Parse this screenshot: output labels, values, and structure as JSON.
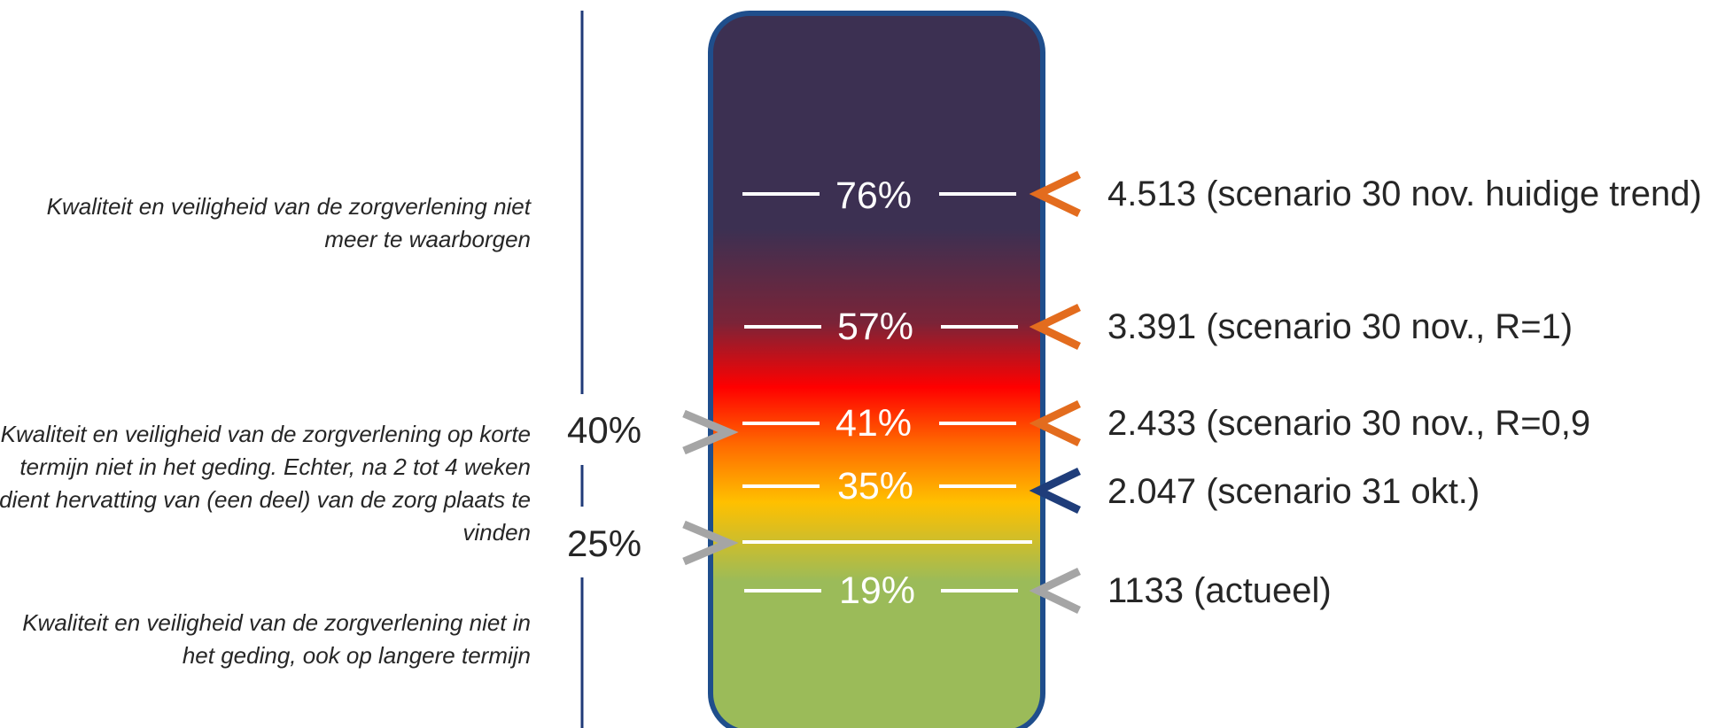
{
  "colors": {
    "axis_line": "#1f3a78",
    "gauge_border": "#1f4e8c",
    "arrow_orange": "#e36c1e",
    "arrow_blue": "#1f3d7a",
    "arrow_gray": "#a5a5a5",
    "tick_white": "#ffffff",
    "gradient": [
      "#3c3052",
      "#7a2438",
      "#ff0000",
      "#ff6a00",
      "#ffc000",
      "#9bbb59"
    ]
  },
  "descriptions": [
    "Kwaliteit en veiligheid van de zorgverlening niet meer te waarborgen",
    "Kwaliteit en veiligheid van de zorgverlening op korte termijn niet in het geding. Echter, na 2 tot 4 weken dient hervatting van (een deel) van de zorg plaats te vinden",
    "Kwaliteit en veiligheid van de zorgverlening niet in het geding, ook op langere termijn"
  ],
  "thresholds": [
    {
      "label": "40%",
      "value": 40
    },
    {
      "label": "25%",
      "value": 25
    }
  ],
  "levels": [
    {
      "label": "76%",
      "value": 76,
      "scenario": "4.513 (scenario 30 nov. huidige trend)",
      "arrow": "orange"
    },
    {
      "label": "57%",
      "value": 57,
      "scenario": "3.391 (scenario 30 nov., R=1)",
      "arrow": "orange"
    },
    {
      "label": "41%",
      "value": 41,
      "scenario": "2.433 (scenario 30 nov., R=0,9",
      "arrow": "orange"
    },
    {
      "label": "35%",
      "value": 35,
      "scenario": "2.047 (scenario 31 okt.)",
      "arrow": "blue"
    },
    {
      "label": "19%",
      "value": 19,
      "scenario": "1133 (actueel)",
      "arrow": "gray"
    }
  ]
}
